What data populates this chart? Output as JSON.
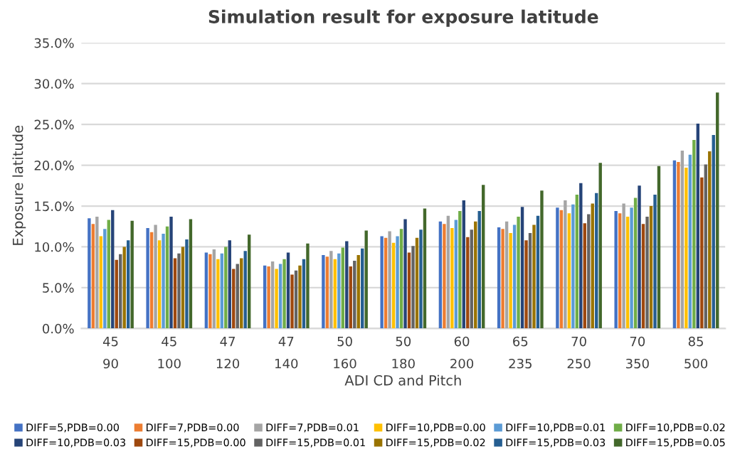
{
  "chart_data": {
    "type": "bar",
    "title": "Simulation result for exposure latitude",
    "xlabel": "ADI CD and Pitch",
    "ylabel": "Exposure latitude",
    "categories": [
      "45\n90",
      "45\n100",
      "47\n120",
      "47\n140",
      "50\n160",
      "50\n180",
      "60\n200",
      "65\n235",
      "70\n250",
      "70\n350",
      "85\n500"
    ],
    "ylim": [
      0,
      35
    ],
    "yticks": [
      {
        "value": 0,
        "label": "0.0%"
      },
      {
        "value": 5,
        "label": "5.0%"
      },
      {
        "value": 10,
        "label": "10.0%"
      },
      {
        "value": 15,
        "label": "15.0%"
      },
      {
        "value": 20,
        "label": "20.0%"
      },
      {
        "value": 25,
        "label": "25.0%"
      },
      {
        "value": 30,
        "label": "30.0%"
      },
      {
        "value": 35,
        "label": "35.0%"
      }
    ],
    "grid": "y",
    "legend": "bottom",
    "series": [
      {
        "name": "DIFF=5,PDB=0.00",
        "color": "#4472c4",
        "values": [
          13.5,
          12.3,
          9.3,
          7.7,
          9.0,
          11.3,
          13.1,
          12.4,
          14.8,
          14.4,
          20.6
        ]
      },
      {
        "name": "DIFF=7,PDB=0.00",
        "color": "#ed7d31",
        "values": [
          12.8,
          11.8,
          9.1,
          7.6,
          8.8,
          11.1,
          12.8,
          12.2,
          14.5,
          14.1,
          20.4
        ]
      },
      {
        "name": "DIFF=7,PDB=0.01",
        "color": "#a5a5a5",
        "values": [
          13.7,
          12.7,
          9.7,
          8.2,
          9.5,
          11.9,
          13.8,
          13.1,
          15.7,
          15.3,
          21.8
        ]
      },
      {
        "name": "DIFF=10,PDB=0.00",
        "color": "#ffc000",
        "values": [
          11.3,
          10.8,
          8.5,
          7.3,
          8.5,
          10.5,
          12.3,
          11.7,
          14.1,
          13.7,
          19.7
        ]
      },
      {
        "name": "DIFF=10,PDB=0.01",
        "color": "#5b9bd5",
        "values": [
          12.2,
          11.6,
          9.2,
          7.9,
          9.2,
          11.3,
          13.3,
          12.7,
          15.2,
          14.8,
          21.3
        ]
      },
      {
        "name": "DIFF=10,PDB=0.02",
        "color": "#70ad47",
        "values": [
          13.3,
          12.5,
          10.0,
          8.5,
          9.9,
          12.2,
          14.4,
          13.7,
          16.4,
          16.0,
          23.1
        ]
      },
      {
        "name": "DIFF=10,PDB=0.03",
        "color": "#264478",
        "values": [
          14.5,
          13.7,
          10.8,
          9.3,
          10.7,
          13.4,
          15.7,
          14.9,
          17.8,
          17.5,
          25.1
        ]
      },
      {
        "name": "DIFF=15,PDB=0.00",
        "color": "#9e480e",
        "values": [
          8.4,
          8.6,
          7.3,
          6.6,
          7.6,
          9.3,
          11.2,
          10.8,
          12.9,
          12.8,
          18.5
        ]
      },
      {
        "name": "DIFF=15,PDB=0.01",
        "color": "#636363",
        "values": [
          9.1,
          9.2,
          7.9,
          7.1,
          8.3,
          10.1,
          12.1,
          11.7,
          14.0,
          13.7,
          20.1
        ]
      },
      {
        "name": "DIFF=15,PDB=0.02",
        "color": "#997300",
        "values": [
          10.0,
          10.0,
          8.6,
          7.7,
          9.0,
          11.1,
          13.1,
          12.7,
          15.3,
          15.0,
          21.7
        ]
      },
      {
        "name": "DIFF=15,PDB=0.03",
        "color": "#255e91",
        "values": [
          10.8,
          10.9,
          9.5,
          8.5,
          9.8,
          12.1,
          14.4,
          13.8,
          16.6,
          16.4,
          23.7
        ]
      },
      {
        "name": "DIFF=15,PDB=0.05",
        "color": "#43682b",
        "values": [
          13.2,
          13.4,
          11.5,
          10.4,
          12.0,
          14.7,
          17.6,
          16.9,
          20.3,
          19.9,
          28.9
        ]
      }
    ]
  }
}
